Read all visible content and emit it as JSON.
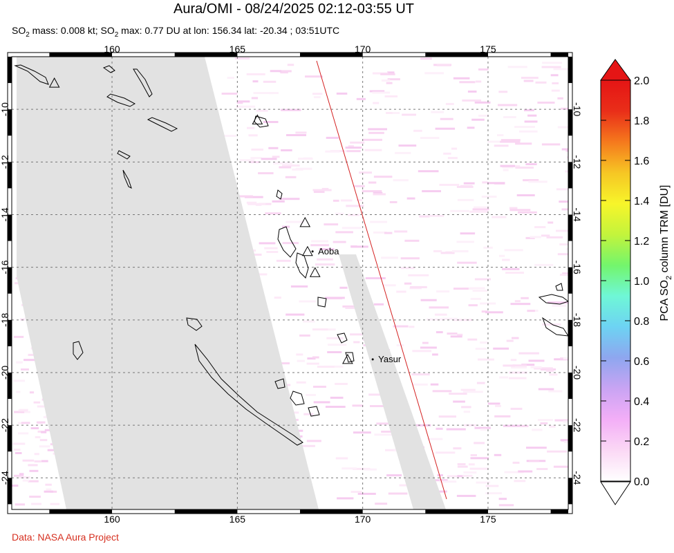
{
  "title": "Aura/OMI - 08/24/2025 02:12-03:55 UT",
  "subtitle": {
    "text_a": "SO",
    "sub_a": "2",
    "text_b": " mass: 0.008 kt; SO",
    "sub_b": "2",
    "text_c": " max: 0.77 DU at lon: 156.34 lat: -20.34 ; 03:51UTC"
  },
  "credit": "Data: NASA Aura Project",
  "map": {
    "lon_range": [
      156.0,
      178.2
    ],
    "lat_range": [
      -25.2,
      -8.0
    ],
    "lon_ticks": [
      160,
      165,
      170,
      175
    ],
    "lat_ticks": [
      -10,
      -12,
      -14,
      -16,
      -18,
      -20,
      -22,
      -24
    ],
    "lon_tick_labels": [
      "160",
      "165",
      "170",
      "175"
    ],
    "lat_tick_labels": [
      "-10",
      "-12",
      "-14",
      "-16",
      "-18",
      "-20",
      "-22",
      "-24"
    ],
    "no_data_color": "#e2e2e2",
    "orbit_line_color": "#d42020",
    "volcanoes": [
      {
        "lon": 157.7,
        "lat": -9.0
      },
      {
        "lon": 165.8,
        "lat": -10.4
      },
      {
        "lon": 167.7,
        "lat": -14.3
      },
      {
        "lon": 167.8,
        "lat": -15.4
      },
      {
        "lon": 168.1,
        "lat": -16.2
      },
      {
        "lon": 169.4,
        "lat": -19.5
      }
    ],
    "place_names": [
      {
        "name": "Aoba",
        "lon": 168.0,
        "lat": -15.4
      },
      {
        "name": "Yasur",
        "lon": 170.4,
        "lat": -19.5
      }
    ]
  },
  "colorbar": {
    "title_a": "PCA SO",
    "title_sub": "2",
    "title_b": " column TRM [DU]",
    "tick_labels": [
      "0.0",
      "0.2",
      "0.4",
      "0.6",
      "0.8",
      "1.0",
      "1.2",
      "1.4",
      "1.6",
      "1.8",
      "2.0"
    ],
    "range": [
      0.0,
      2.0
    ],
    "stops": [
      "#ffffff",
      "#fbd8f5",
      "#f3aef7",
      "#c9a4f3",
      "#8ea6ef",
      "#6dd3f3",
      "#6ff7d6",
      "#73f56c",
      "#c3f43c",
      "#f7f52a",
      "#f6c624",
      "#f5791d",
      "#e92e19",
      "#e51515"
    ]
  }
}
